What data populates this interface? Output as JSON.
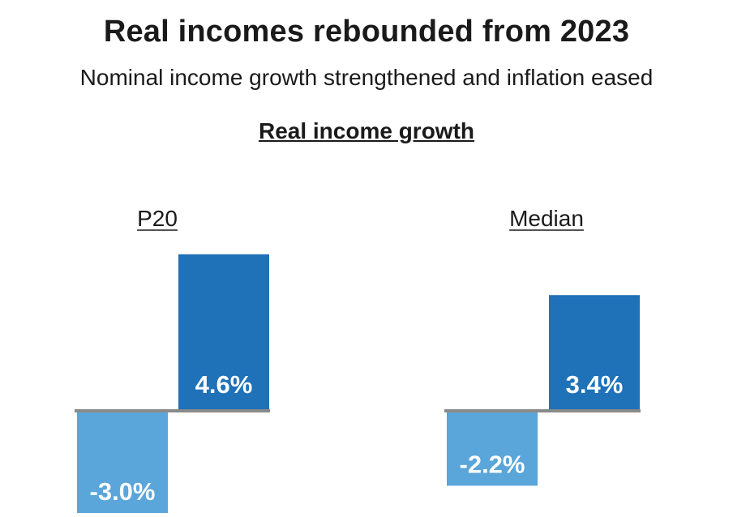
{
  "title": "Real incomes rebounded from 2023",
  "subtitle": "Nominal income growth strengthened and inflation eased",
  "section_title": "Real income growth",
  "colors": {
    "negative_bar": "#5aa5d9",
    "positive_bar": "#1f71b8",
    "baseline": "#8a8a8a",
    "bar_label": "#ffffff"
  },
  "chart_data": [
    {
      "type": "bar",
      "title": "P20",
      "categories": [
        "",
        ""
      ],
      "values": [
        -3.0,
        4.6
      ],
      "labels": [
        "-3.0%",
        "4.6%"
      ]
    },
    {
      "type": "bar",
      "title": "Median",
      "categories": [
        "",
        ""
      ],
      "values": [
        -2.2,
        3.4
      ],
      "labels": [
        "-2.2%",
        "3.4%"
      ]
    }
  ]
}
